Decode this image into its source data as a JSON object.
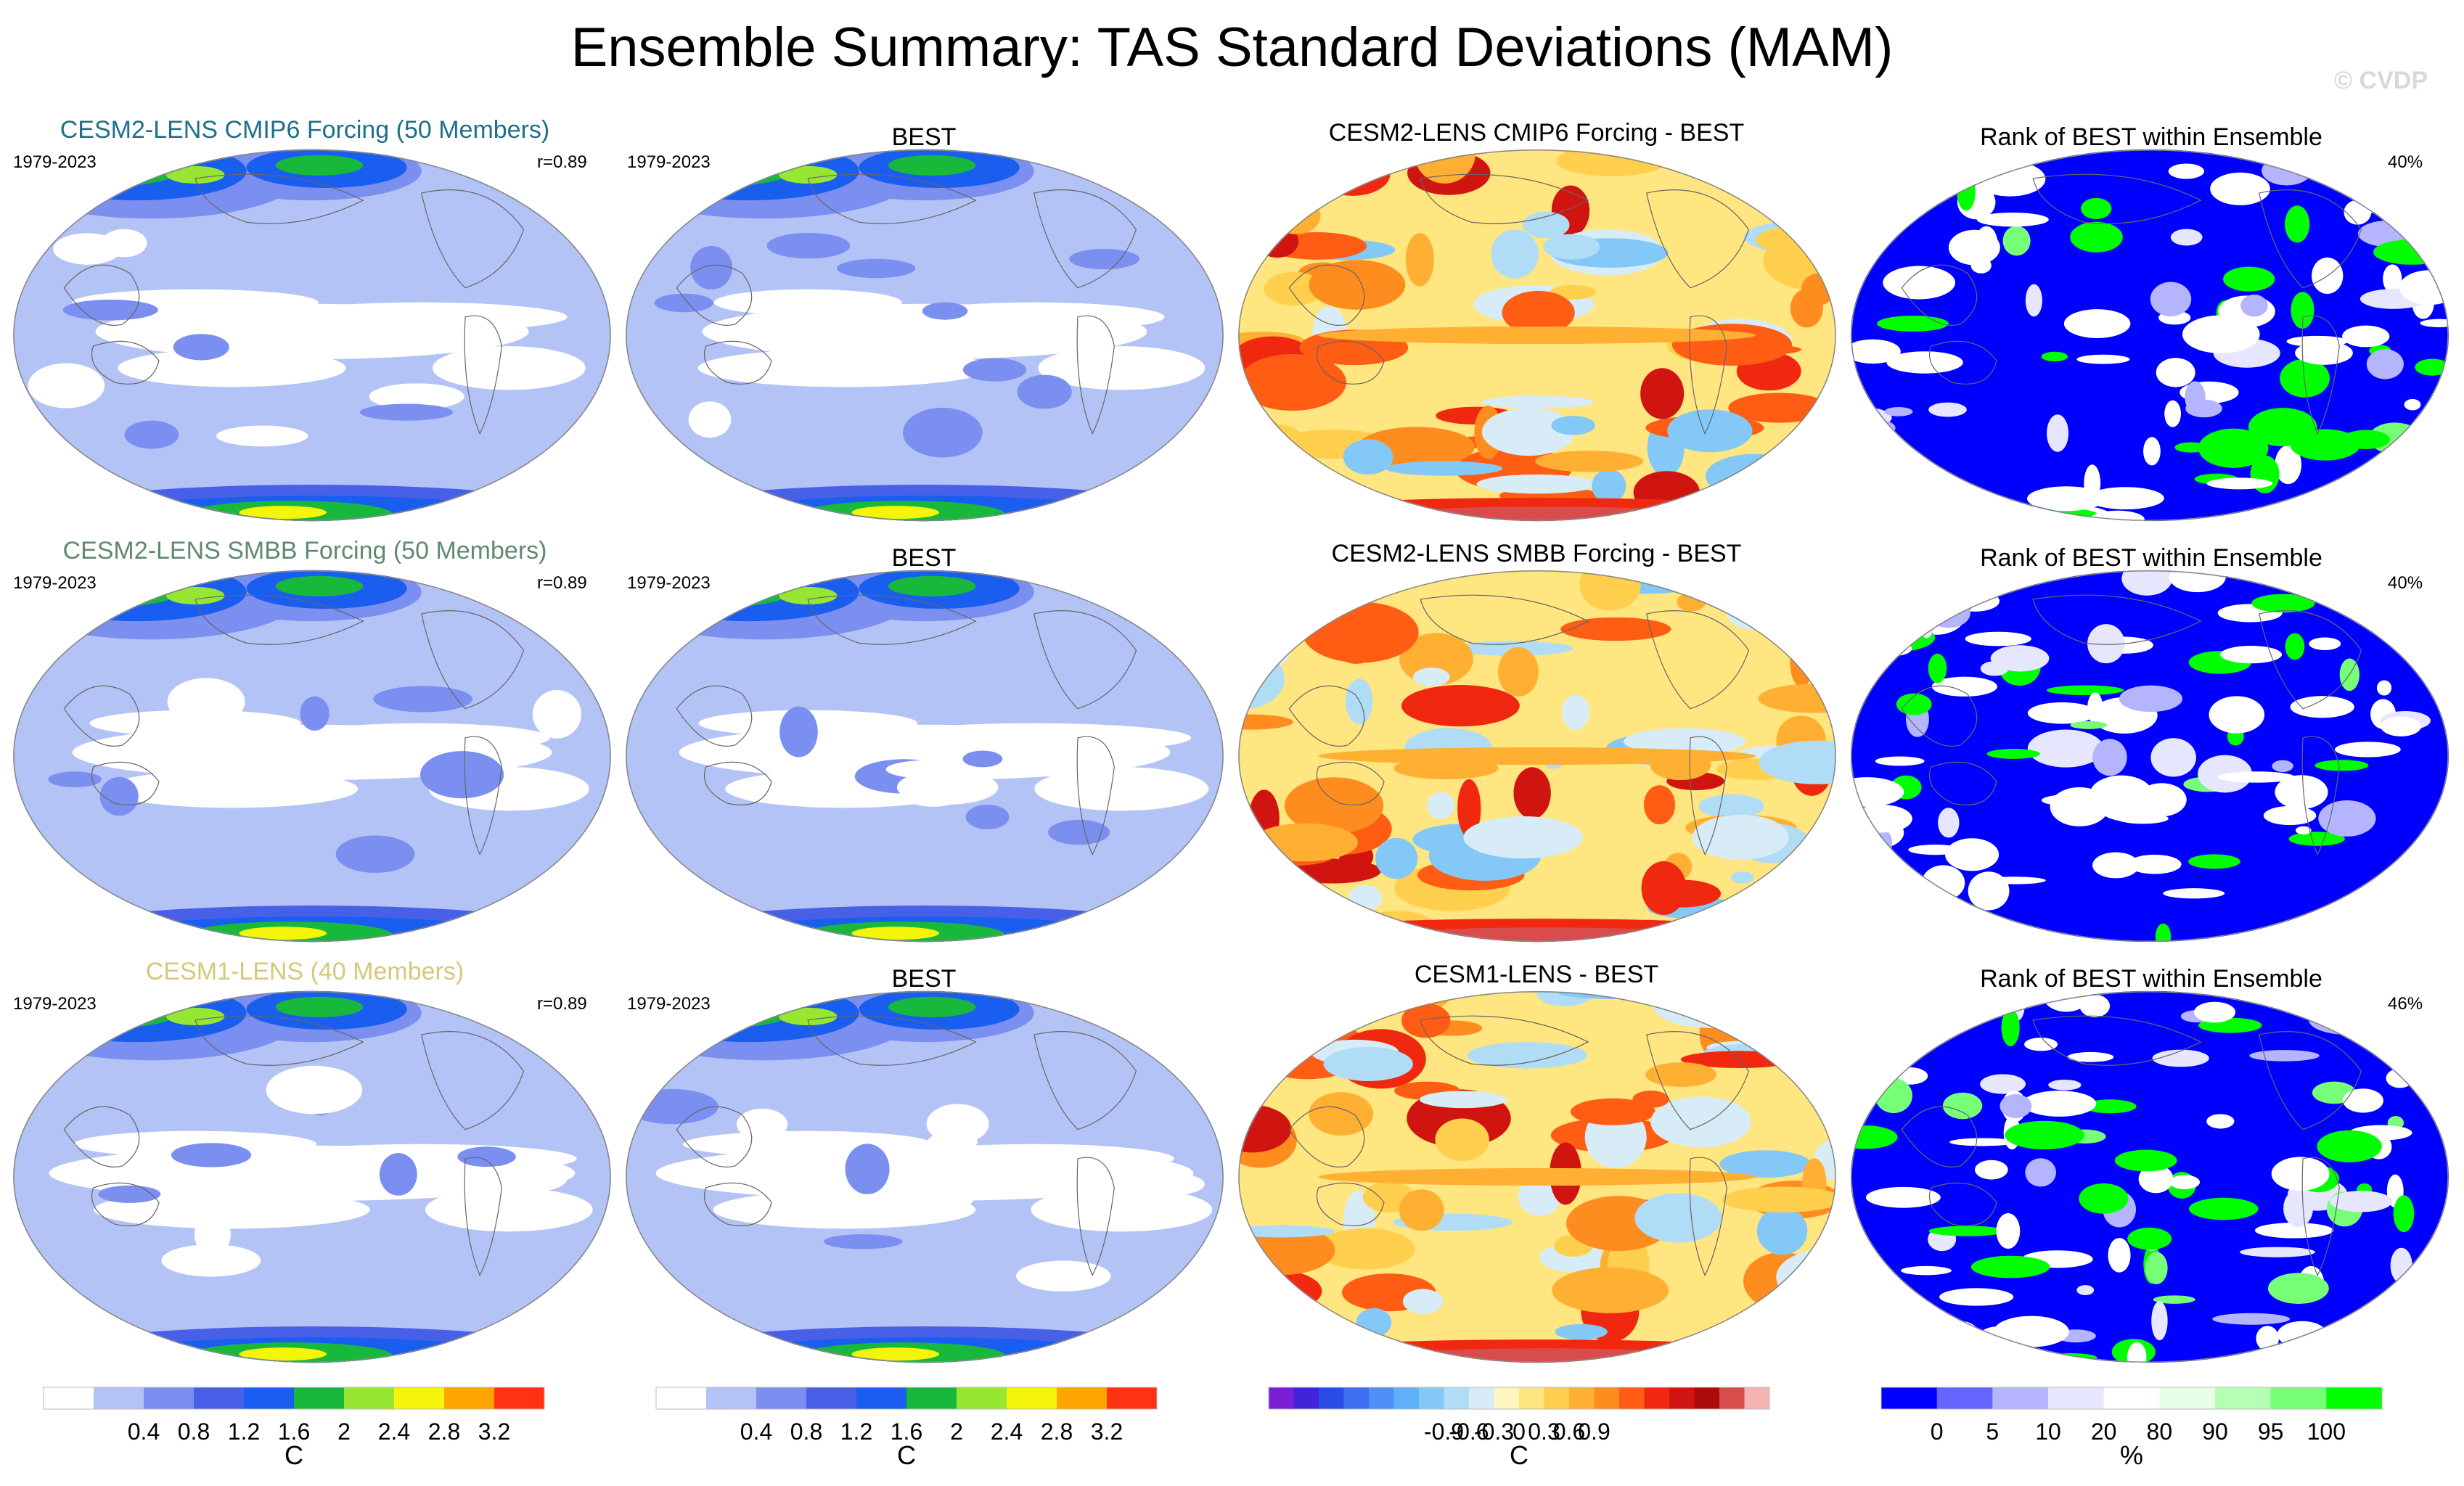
{
  "title": "Ensemble Summary: TAS Standard Deviations (MAM)",
  "watermark": "© CVDP",
  "rows": [
    {
      "model": {
        "title": "CESM2-LENS CMIP6 Forcing (50 Members)",
        "title_color": "#1f6f8b",
        "years": "1979-2023",
        "corr": "r=0.89"
      },
      "obs": {
        "title": "BEST",
        "years": "1979-2023"
      },
      "diff": {
        "title": "CESM2-LENS CMIP6 Forcing - BEST"
      },
      "rank": {
        "title": "Rank of BEST within Ensemble",
        "pct": "40%"
      }
    },
    {
      "model": {
        "title": "CESM2-LENS SMBB Forcing (50 Members)",
        "title_color": "#5f8a6f",
        "years": "1979-2023",
        "corr": "r=0.89"
      },
      "obs": {
        "title": "BEST",
        "years": "1979-2023"
      },
      "diff": {
        "title": "CESM2-LENS SMBB Forcing - BEST"
      },
      "rank": {
        "title": "Rank of BEST within Ensemble",
        "pct": "40%"
      }
    },
    {
      "model": {
        "title": "CESM1-LENS (40 Members)",
        "title_color": "#d6c87a",
        "years": "1979-2023",
        "corr": "r=0.89"
      },
      "obs": {
        "title": "BEST",
        "years": "1979-2023"
      },
      "diff": {
        "title": "CESM1-LENS - BEST"
      },
      "rank": {
        "title": "Rank of BEST within Ensemble",
        "pct": "46%"
      }
    }
  ],
  "colorbars": [
    {
      "name": "stddev-model",
      "unit": "C",
      "colors": [
        "#ffffff",
        "#b4c3f5",
        "#7b8ff0",
        "#4860e8",
        "#1a5ef0",
        "#18b83c",
        "#96e632",
        "#f5f50a",
        "#ffa500",
        "#ff3214"
      ],
      "ticks": [
        "0.4",
        "0.8",
        "1.2",
        "1.6",
        "2",
        "2.4",
        "2.8",
        "3.2"
      ]
    },
    {
      "name": "stddev-obs",
      "unit": "C",
      "colors": [
        "#ffffff",
        "#b4c3f5",
        "#7b8ff0",
        "#4860e8",
        "#1a5ef0",
        "#18b83c",
        "#96e632",
        "#f5f50a",
        "#ffa500",
        "#ff3214"
      ],
      "ticks": [
        "0.4",
        "0.8",
        "1.2",
        "1.6",
        "2",
        "2.4",
        "2.8",
        "3.2"
      ]
    },
    {
      "name": "difference",
      "unit": "C",
      "colors": [
        "#7a1fd6",
        "#3f24d9",
        "#2c4ce6",
        "#3d6ff0",
        "#4f8ff5",
        "#5fb0f7",
        "#84c8f7",
        "#b0dcf5",
        "#d7ecf7",
        "#fff6c0",
        "#ffe680",
        "#ffcf4d",
        "#ffb033",
        "#ff8c1f",
        "#ff5c14",
        "#f0280f",
        "#d0140f",
        "#ad0a0a",
        "#d94c4c",
        "#f5b3b3"
      ],
      "ticks": [
        "-0.9",
        "-0.6",
        "-0.3",
        "0",
        "0.3",
        "0.6",
        "0.9"
      ]
    },
    {
      "name": "rank",
      "unit": "%",
      "colors": [
        "#0000ff",
        "#6464ff",
        "#b4b4ff",
        "#e6e6ff",
        "#ffffff",
        "#e6ffe6",
        "#b4ffb4",
        "#78ff78",
        "#00ff00"
      ],
      "ticks": [
        "0",
        "5",
        "10",
        "20",
        "80",
        "90",
        "95",
        "100"
      ]
    }
  ],
  "chart_data": [
    {
      "type": "map",
      "field": "TAS standard deviation",
      "units": "C",
      "title": "CESM2-LENS CMIP6 Forcing (50 Members)",
      "period": "1979-2023",
      "season": "MAM",
      "pattern_correlation": 0.89,
      "color_levels": [
        0.4,
        0.8,
        1.2,
        1.6,
        2,
        2.4,
        2.8,
        3.2
      ]
    },
    {
      "type": "map",
      "field": "TAS standard deviation",
      "units": "C",
      "title": "BEST",
      "period": "1979-2023",
      "season": "MAM",
      "color_levels": [
        0.4,
        0.8,
        1.2,
        1.6,
        2,
        2.4,
        2.8,
        3.2
      ]
    },
    {
      "type": "map",
      "field": "TAS standard deviation difference",
      "units": "C",
      "title": "CESM2-LENS CMIP6 Forcing - BEST",
      "color_levels": [
        -0.9,
        -0.6,
        -0.3,
        0,
        0.3,
        0.6,
        0.9
      ]
    },
    {
      "type": "map",
      "field": "Rank of BEST within Ensemble",
      "units": "%",
      "percent_in_range": 40,
      "color_levels": [
        0,
        5,
        10,
        20,
        80,
        90,
        95,
        100
      ]
    },
    {
      "type": "map",
      "field": "TAS standard deviation",
      "units": "C",
      "title": "CESM2-LENS SMBB Forcing (50 Members)",
      "period": "1979-2023",
      "season": "MAM",
      "pattern_correlation": 0.89
    },
    {
      "type": "map",
      "field": "TAS standard deviation",
      "units": "C",
      "title": "BEST",
      "period": "1979-2023"
    },
    {
      "type": "map",
      "field": "TAS standard deviation difference",
      "units": "C",
      "title": "CESM2-LENS SMBB Forcing - BEST"
    },
    {
      "type": "map",
      "field": "Rank of BEST within Ensemble",
      "units": "%",
      "percent_in_range": 40
    },
    {
      "type": "map",
      "field": "TAS standard deviation",
      "units": "C",
      "title": "CESM1-LENS (40 Members)",
      "period": "1979-2023",
      "season": "MAM",
      "pattern_correlation": 0.89
    },
    {
      "type": "map",
      "field": "TAS standard deviation",
      "units": "C",
      "title": "BEST",
      "period": "1979-2023"
    },
    {
      "type": "map",
      "field": "TAS standard deviation difference",
      "units": "C",
      "title": "CESM1-LENS - BEST"
    },
    {
      "type": "map",
      "field": "Rank of BEST within Ensemble",
      "units": "%",
      "percent_in_range": 46
    }
  ]
}
